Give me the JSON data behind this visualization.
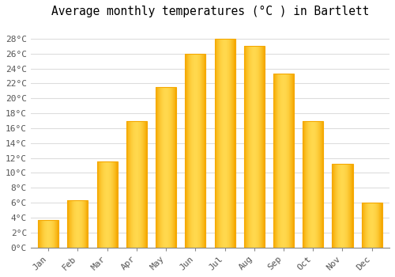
{
  "title": "Average monthly temperatures (°C ) in Bartlett",
  "months": [
    "Jan",
    "Feb",
    "Mar",
    "Apr",
    "May",
    "Jun",
    "Jul",
    "Aug",
    "Sep",
    "Oct",
    "Nov",
    "Dec"
  ],
  "values": [
    3.7,
    6.3,
    11.5,
    17.0,
    21.5,
    26.0,
    28.0,
    27.0,
    23.3,
    17.0,
    11.2,
    6.0
  ],
  "bar_color_center": "#FFD84D",
  "bar_color_edge": "#F5A800",
  "background_color": "#FFFFFF",
  "plot_bg_color": "#FFFFFF",
  "ylim": [
    0,
    30
  ],
  "yticks": [
    0,
    2,
    4,
    6,
    8,
    10,
    12,
    14,
    16,
    18,
    20,
    22,
    24,
    26,
    28
  ],
  "ytick_labels": [
    "0°C",
    "2°C",
    "4°C",
    "6°C",
    "8°C",
    "10°C",
    "12°C",
    "14°C",
    "16°C",
    "18°C",
    "20°C",
    "22°C",
    "24°C",
    "26°C",
    "28°C"
  ],
  "title_fontsize": 10.5,
  "tick_fontsize": 8,
  "grid_color": "#DDDDDD",
  "font_family": "monospace",
  "bar_width": 0.7
}
